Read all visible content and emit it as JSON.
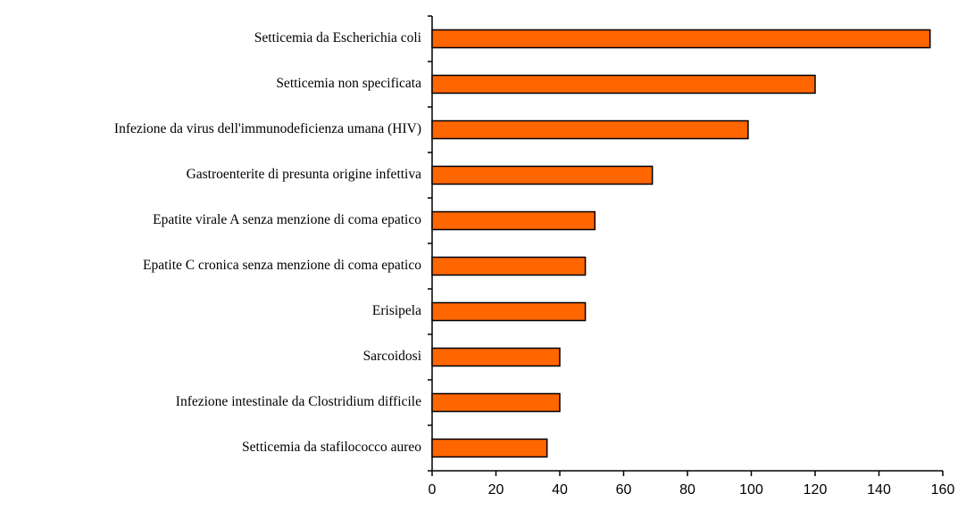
{
  "chart_data": {
    "type": "bar",
    "orientation": "horizontal",
    "categories": [
      "Setticemia da Escherichia coli",
      "Setticemia non specificata",
      "Infezione da virus dell'immunodeficienza umana (HIV)",
      "Gastroenterite di presunta origine infettiva",
      "Epatite virale A senza menzione di coma epatico",
      "Epatite C cronica senza menzione di coma epatico",
      "Erisipela",
      "Sarcoidosi",
      "Infezione intestinale da Clostridium difficile",
      "Setticemia da stafilococco aureo"
    ],
    "values": [
      156,
      120,
      99,
      69,
      51,
      48,
      48,
      40,
      40,
      36
    ],
    "color": "#ff6600",
    "xlim": [
      0,
      160
    ],
    "xticks": [
      0,
      20,
      40,
      60,
      80,
      100,
      120,
      140,
      160
    ]
  }
}
